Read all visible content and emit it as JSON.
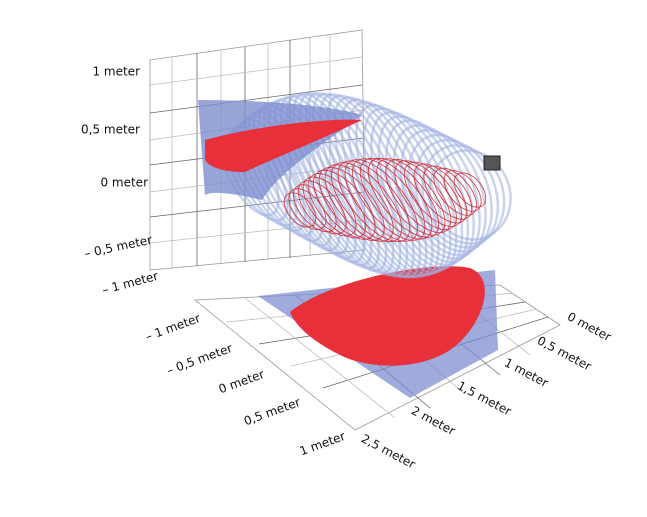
{
  "vertical_axis": {
    "ticks": [
      "1 meter",
      "0,5 meter",
      "0 meter",
      "– 0,5 meter",
      "– 1 meter"
    ]
  },
  "floor_left_axis": {
    "ticks": [
      "– 1 meter",
      "– 0,5 meter",
      "0 meter",
      "0,5 meter",
      "1 meter"
    ]
  },
  "floor_right_axis": {
    "ticks": [
      "0 meter",
      "0,5 meter",
      "1 meter",
      "1,5 meter",
      "2 meter",
      "2,5 meter"
    ]
  }
}
